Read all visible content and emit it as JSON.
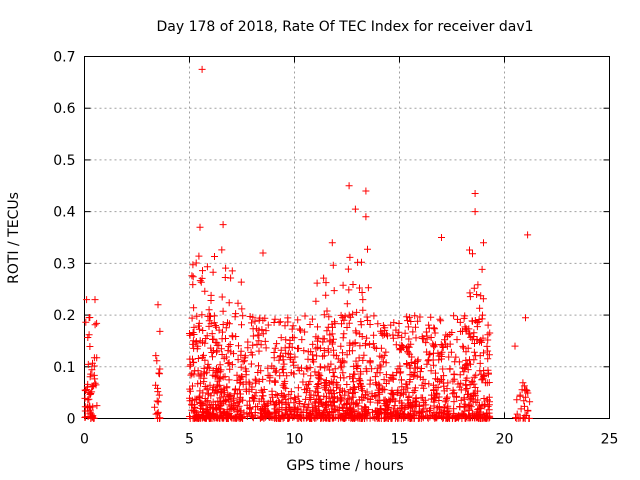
{
  "chart_data": {
    "type": "scatter",
    "title": "Day 178 of 2018, Rate Of TEC Index for receiver dav1",
    "xlabel": "GPS time / hours",
    "ylabel": "ROTI / TECUs",
    "xlim": [
      0,
      25
    ],
    "ylim": [
      0,
      0.7
    ],
    "xticks": [
      0,
      5,
      10,
      15,
      20,
      25
    ],
    "xtick_labels": [
      "0",
      "5",
      "10",
      "15",
      "20",
      "25"
    ],
    "yticks": [
      0,
      0.1,
      0.2,
      0.3,
      0.4,
      0.5,
      0.6,
      0.7
    ],
    "ytick_labels": [
      "0",
      "0.1",
      "0.2",
      "0.3",
      "0.4",
      "0.5",
      "0.6",
      "0.7"
    ],
    "grid": true,
    "marker": "+",
    "color": "#ff0000",
    "notable_points": [
      {
        "x": 5.6,
        "y": 0.675
      },
      {
        "x": 12.6,
        "y": 0.45
      },
      {
        "x": 12.9,
        "y": 0.405
      },
      {
        "x": 13.4,
        "y": 0.44
      },
      {
        "x": 13.4,
        "y": 0.39
      },
      {
        "x": 18.6,
        "y": 0.435
      },
      {
        "x": 18.6,
        "y": 0.4
      },
      {
        "x": 21.1,
        "y": 0.355
      },
      {
        "x": 0.1,
        "y": 0.23
      },
      {
        "x": 0.5,
        "y": 0.23
      },
      {
        "x": 3.5,
        "y": 0.22
      },
      {
        "x": 5.5,
        "y": 0.37
      },
      {
        "x": 6.6,
        "y": 0.375
      },
      {
        "x": 8.5,
        "y": 0.32
      },
      {
        "x": 11.8,
        "y": 0.34
      },
      {
        "x": 17.0,
        "y": 0.35
      },
      {
        "x": 19.0,
        "y": 0.34
      },
      {
        "x": 20.5,
        "y": 0.14
      },
      {
        "x": 21.0,
        "y": 0.195
      }
    ],
    "activity_clusters": [
      {
        "x_start": 0.0,
        "x_end": 0.6,
        "y_max": 0.2,
        "density": 60
      },
      {
        "x_start": 3.3,
        "x_end": 3.6,
        "y_max": 0.2,
        "density": 20
      },
      {
        "x_start": 5.0,
        "x_end": 19.3,
        "y_max": 0.2,
        "density": 1500
      },
      {
        "x_start": 5.0,
        "x_end": 7.5,
        "y_max": 0.33,
        "density": 150
      },
      {
        "x_start": 11.0,
        "x_end": 12.0,
        "y_max": 0.3,
        "density": 60
      },
      {
        "x_start": 12.3,
        "x_end": 13.6,
        "y_max": 0.35,
        "density": 60
      },
      {
        "x_start": 18.3,
        "x_end": 19.3,
        "y_max": 0.35,
        "density": 60
      },
      {
        "x_start": 20.5,
        "x_end": 21.2,
        "y_max": 0.07,
        "density": 30
      }
    ]
  }
}
